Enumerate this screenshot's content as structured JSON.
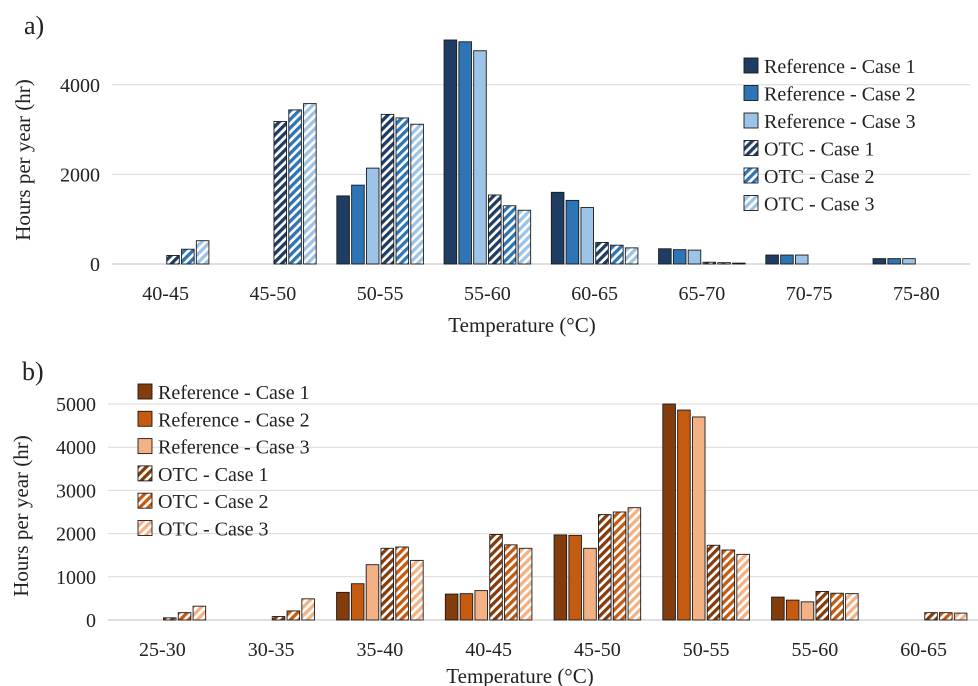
{
  "palettes": {
    "blue": {
      "c1": "#1f3d63",
      "c2": "#2e75b6",
      "c3": "#9dc3e6"
    },
    "orange": {
      "c1": "#843c0c",
      "c2": "#c55a11",
      "c3": "#f4b183"
    }
  },
  "chart_data": [
    {
      "panel_label": "a)",
      "type": "bar",
      "palette": "blue",
      "xlabel": "Temperature (°C)",
      "ylabel": "Hours per year (hr)",
      "ylim": [
        0,
        5000
      ],
      "yticks": [
        0,
        2000,
        4000
      ],
      "grid": true,
      "legend_position": "right",
      "categories": [
        "40-45",
        "45-50",
        "50-55",
        "55-60",
        "60-65",
        "65-70",
        "70-75",
        "75-80"
      ],
      "series": [
        {
          "name": "Reference - Case 1",
          "style": "solid",
          "color_key": "c1",
          "values": [
            0,
            0,
            1520,
            5000,
            1600,
            340,
            200,
            120
          ]
        },
        {
          "name": "Reference - Case 2",
          "style": "solid",
          "color_key": "c2",
          "values": [
            0,
            0,
            1760,
            4960,
            1420,
            320,
            200,
            120
          ]
        },
        {
          "name": "Reference - Case 3",
          "style": "solid",
          "color_key": "c3",
          "values": [
            0,
            0,
            2140,
            4760,
            1260,
            310,
            200,
            120
          ]
        },
        {
          "name": "OTC - Case 1",
          "style": "hatched",
          "color_key": "c1",
          "values": [
            190,
            3180,
            3340,
            1540,
            480,
            40,
            0,
            0
          ]
        },
        {
          "name": "OTC - Case 2",
          "style": "hatched",
          "color_key": "c2",
          "values": [
            330,
            3440,
            3260,
            1300,
            420,
            30,
            0,
            0
          ]
        },
        {
          "name": "OTC - Case 3",
          "style": "hatched",
          "color_key": "c3",
          "values": [
            520,
            3580,
            3120,
            1200,
            360,
            20,
            0,
            0
          ]
        }
      ]
    },
    {
      "panel_label": "b)",
      "type": "bar",
      "palette": "orange",
      "xlabel": "Temperature (°C)",
      "ylabel": "Hours per year (hr)",
      "ylim": [
        0,
        5000
      ],
      "yticks": [
        0,
        1000,
        2000,
        3000,
        4000,
        5000
      ],
      "grid": true,
      "legend_position": "top-left",
      "categories": [
        "25-30",
        "30-35",
        "35-40",
        "40-45",
        "45-50",
        "50-55",
        "55-60",
        "60-65"
      ],
      "series": [
        {
          "name": "Reference - Case 1",
          "style": "solid",
          "color_key": "c1",
          "values": [
            0,
            0,
            640,
            600,
            1970,
            5000,
            530,
            0
          ]
        },
        {
          "name": "Reference - Case 2",
          "style": "solid",
          "color_key": "c2",
          "values": [
            0,
            0,
            840,
            610,
            1960,
            4860,
            460,
            0
          ]
        },
        {
          "name": "Reference - Case 3",
          "style": "solid",
          "color_key": "c3",
          "values": [
            0,
            0,
            1280,
            680,
            1660,
            4700,
            420,
            0
          ]
        },
        {
          "name": "OTC - Case 1",
          "style": "hatched",
          "color_key": "c1",
          "values": [
            50,
            80,
            1660,
            1980,
            2440,
            1730,
            660,
            170
          ]
        },
        {
          "name": "OTC - Case 2",
          "style": "hatched",
          "color_key": "c2",
          "values": [
            170,
            210,
            1690,
            1740,
            2500,
            1620,
            620,
            170
          ]
        },
        {
          "name": "OTC - Case 3",
          "style": "hatched",
          "color_key": "c3",
          "values": [
            320,
            490,
            1380,
            1660,
            2600,
            1520,
            610,
            160
          ]
        }
      ]
    }
  ]
}
